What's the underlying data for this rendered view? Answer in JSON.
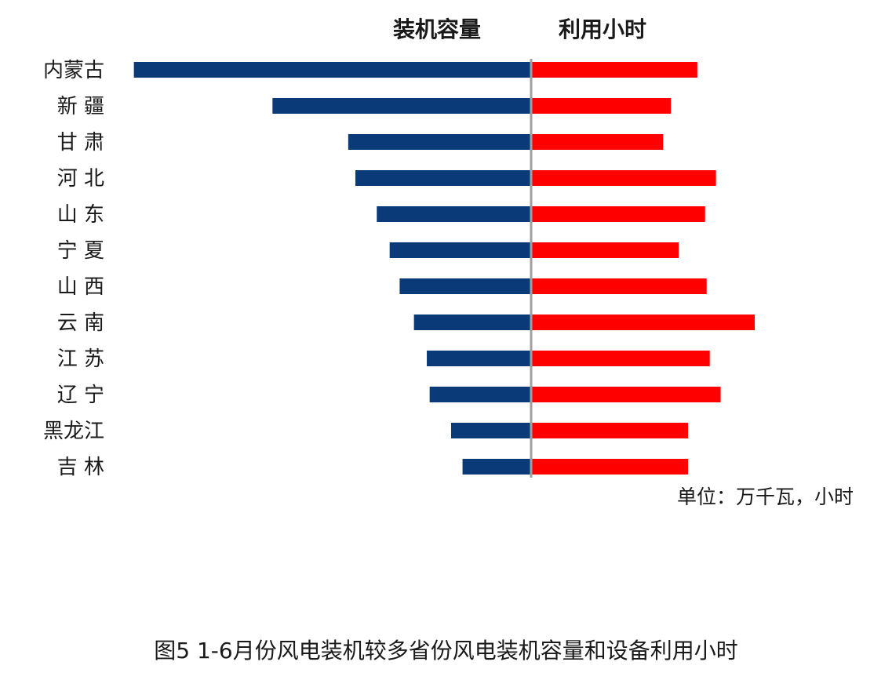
{
  "chart_data": {
    "type": "bar",
    "layout": "butterfly",
    "categories": [
      "内蒙古",
      "新 疆",
      "甘 肃",
      "河 北",
      "山 东",
      "宁 夏",
      "山 西",
      "云 南",
      "江 苏",
      "辽 宁",
      "黑龙江",
      "吉 林"
    ],
    "series": [
      {
        "name": "装机容量",
        "side": "left",
        "color": "#0b3a78",
        "values": [
          2780,
          1810,
          1280,
          1230,
          1080,
          990,
          920,
          820,
          730,
          710,
          560,
          480
        ]
      },
      {
        "name": "利用小时",
        "side": "right",
        "color": "#ff0000",
        "values": [
          1070,
          900,
          850,
          1190,
          1120,
          950,
          1130,
          1440,
          1150,
          1220,
          1010,
          1010
        ]
      }
    ],
    "unit_label": "单位：万千瓦，小时",
    "xlim_left": [
      0,
      2800
    ],
    "xlim_right": [
      0,
      1500
    ]
  },
  "caption": "图5 1-6月份风电装机较多省份风电装机容量和设备利用小时"
}
